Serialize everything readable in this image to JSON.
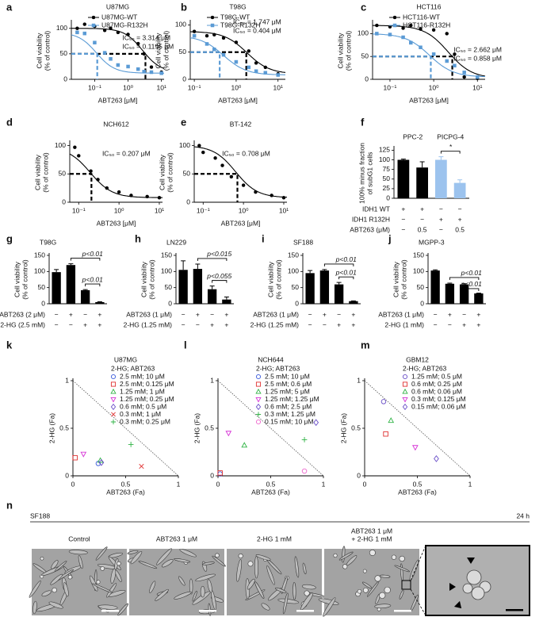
{
  "chart_data": [
    {
      "panel_label": "a",
      "type": "line",
      "title": "U87MG",
      "x_label": "ABT263 [μM]",
      "y_label": [
        "Cell viability",
        "(% of control)"
      ],
      "xscale": "log",
      "xlim": [
        0.02,
        12
      ],
      "ylim": [
        0,
        112
      ],
      "xticks": [
        {
          "value": 0.1,
          "label": "10⁻¹"
        },
        {
          "value": 1,
          "label": "10⁰"
        },
        {
          "value": 10,
          "label": "10¹"
        }
      ],
      "yticks": [
        0,
        50,
        100
      ],
      "ic50_level": 50,
      "x": [
        0.03,
        0.05,
        0.1,
        0.2,
        0.3,
        0.5,
        1,
        2,
        3,
        5,
        10
      ],
      "series": [
        {
          "name": "U87MG-WT",
          "color": "#000000",
          "marker": "circle",
          "values": [
            100,
            108,
            104,
            96,
            100,
            92,
            88,
            70,
            50,
            24,
            14
          ],
          "ic50": 3.314,
          "ic50_label": "IC₅₀ = 3.314 μM"
        },
        {
          "name": "U87MG-R132H",
          "color": "#5b9bd5",
          "marker": "square",
          "values": [
            92,
            90,
            72,
            52,
            40,
            28,
            25,
            20,
            15,
            14,
            12
          ],
          "ic50": 0.1195,
          "ic50_label": "IC₅₀ = 0.1195 μM"
        }
      ]
    },
    {
      "panel_label": "b",
      "type": "line",
      "title": "T98G",
      "x_label": "ABT263 [μM]",
      "y_label": [
        "Cell viability",
        "(% of control)"
      ],
      "xscale": "log",
      "xlim": [
        0.08,
        15
      ],
      "ylim": [
        0,
        105
      ],
      "xticks": [
        {
          "value": 0.1,
          "label": "10⁻¹"
        },
        {
          "value": 1,
          "label": "10⁰"
        },
        {
          "value": 10,
          "label": "10¹"
        }
      ],
      "yticks": [
        0,
        50,
        100
      ],
      "ic50_level": 50,
      "x": [
        0.1,
        0.2,
        0.3,
        0.5,
        1,
        2,
        3,
        5,
        10
      ],
      "series": [
        {
          "name": "T98G-WT",
          "color": "#000000",
          "marker": "circle",
          "values": [
            88,
            80,
            82,
            76,
            68,
            52,
            30,
            22,
            10
          ],
          "ic50": 1.747,
          "ic50_label": "IC₅₀ = 1.747 μM"
        },
        {
          "name": "T98G-R132H",
          "color": "#5b9bd5",
          "marker": "square",
          "values": [
            80,
            65,
            55,
            45,
            32,
            22,
            15,
            12,
            8
          ],
          "ic50": 0.404,
          "ic50_label": "IC₅₀ = 0.404 μM"
        }
      ]
    },
    {
      "panel_label": "c",
      "type": "line",
      "title": "HCT116",
      "x_label": "ABT263 [μM]",
      "y_label": [
        "Cell viability",
        "(% of control)"
      ],
      "xscale": "log",
      "xlim": [
        0.04,
        15
      ],
      "ylim": [
        0,
        125
      ],
      "xticks": [
        {
          "value": 0.1,
          "label": "10⁻¹"
        },
        {
          "value": 1,
          "label": "10⁰"
        },
        {
          "value": 10,
          "label": "10¹"
        }
      ],
      "yticks": [
        0,
        50,
        100
      ],
      "ic50_level": 50,
      "x": [
        0.05,
        0.1,
        0.2,
        0.3,
        0.5,
        1,
        2,
        3,
        5,
        10
      ],
      "series": [
        {
          "name": "HCT116-WT",
          "color": "#000000",
          "marker": "circle",
          "values": [
            118,
            115,
            112,
            118,
            110,
            108,
            100,
            55,
            5,
            2
          ],
          "ic50": 2.662,
          "ic50_label": "IC₅₀ = 2.662 μM"
        },
        {
          "name": "HCT116-R132H",
          "color": "#5b9bd5",
          "marker": "square",
          "values": [
            100,
            98,
            92,
            80,
            70,
            55,
            40,
            30,
            15,
            5
          ],
          "ic50": 0.858,
          "ic50_label": "IC₅₀ = 0.858 μM"
        }
      ]
    },
    {
      "panel_label": "d",
      "type": "line",
      "title": "NCH612",
      "x_label": "ABT263 [μM]",
      "y_label": [
        "Cell viability",
        "(% of control)"
      ],
      "xscale": "log",
      "xlim": [
        0.06,
        12
      ],
      "ylim": [
        0,
        105
      ],
      "xticks": [
        {
          "value": 0.1,
          "label": "10⁻¹"
        },
        {
          "value": 1,
          "label": "10⁰"
        },
        {
          "value": 10,
          "label": "10¹"
        }
      ],
      "yticks": [
        0,
        50,
        100
      ],
      "ic50_level": 50,
      "x": [
        0.08,
        0.1,
        0.2,
        0.3,
        0.5,
        1,
        2,
        5,
        10
      ],
      "series": [
        {
          "color": "#000000",
          "marker": "circle",
          "values": [
            97,
            82,
            55,
            40,
            25,
            18,
            12,
            10,
            8
          ],
          "ic50": 0.207,
          "ic50_label": "IC₅₀ = 0.207 μM"
        }
      ]
    },
    {
      "panel_label": "e",
      "type": "line",
      "title": "BT-142",
      "x_label": "ABT263 [μM]",
      "y_label": [
        "Cell viability",
        "(% of control)"
      ],
      "xscale": "log",
      "xlim": [
        0.06,
        12
      ],
      "ylim": [
        0,
        105
      ],
      "xticks": [
        {
          "value": 0.1,
          "label": "10⁻¹"
        },
        {
          "value": 1,
          "label": "10⁰"
        },
        {
          "value": 10,
          "label": "10¹"
        }
      ],
      "yticks": [
        0,
        50,
        100
      ],
      "ic50_level": 50,
      "x": [
        0.08,
        0.1,
        0.2,
        0.3,
        0.5,
        1,
        2,
        5,
        10
      ],
      "series": [
        {
          "color": "#000000",
          "marker": "circle",
          "values": [
            100,
            88,
            78,
            65,
            45,
            30,
            18,
            12,
            8
          ],
          "ic50": 0.708,
          "ic50_label": "IC₅₀ = 0.708 μM"
        }
      ]
    },
    {
      "panel_label": "f",
      "type": "bar",
      "y_label": [
        "100% minus fraction",
        "of subG1 cells"
      ],
      "ylim": [
        0,
        130
      ],
      "yticks": [
        0,
        25,
        50,
        75,
        100,
        125
      ],
      "values": [
        100,
        80,
        100,
        40
      ],
      "errors": [
        2,
        15,
        8,
        8
      ],
      "colors": [
        "#000000",
        "#000000",
        "#9cc3ee",
        "#9cc3ee"
      ],
      "groups": [
        {
          "label": "PPC-2",
          "bars": [
            0,
            1
          ]
        },
        {
          "label": "PICPG-4",
          "bars": [
            2,
            3
          ]
        }
      ],
      "conditions": [
        {
          "name": "IDH1 WT",
          "marks": [
            "+",
            "+",
            "−",
            "−"
          ]
        },
        {
          "name": "IDH1 R132H",
          "marks": [
            "−",
            "−",
            "+",
            "+"
          ]
        },
        {
          "name": "ABT263 (μM)",
          "marks": [
            "−",
            "0.5",
            "−",
            "0.5"
          ]
        }
      ],
      "comparisons": [
        {
          "bars": [
            2,
            3
          ],
          "label": "*"
        }
      ]
    },
    {
      "panel_label": "g",
      "type": "bar",
      "title": "T98G",
      "y_label": [
        "Cell viability",
        "(% of control)"
      ],
      "ylim": [
        0,
        150
      ],
      "yticks": [
        0,
        50,
        100,
        150
      ],
      "values": [
        98,
        120,
        42,
        5
      ],
      "errors": [
        8,
        4,
        2,
        1
      ],
      "color": "#000000",
      "conditions": [
        {
          "name": "ABT263 (2 μM)",
          "marks": [
            "−",
            "+",
            "−",
            "+"
          ]
        },
        {
          "name": "2-HG (2.5 mM)",
          "marks": [
            "−",
            "−",
            "+",
            "+"
          ]
        }
      ],
      "comparisons": [
        {
          "bars": [
            1,
            3
          ],
          "label": "p<0.01"
        },
        {
          "bars": [
            2,
            3
          ],
          "label": "p<0.01"
        }
      ]
    },
    {
      "panel_label": "h",
      "type": "bar",
      "title": "LN229",
      "y_label": [
        "Cell viability",
        "(% of control)"
      ],
      "ylim": [
        0,
        150
      ],
      "yticks": [
        0,
        50,
        100,
        150
      ],
      "values": [
        105,
        108,
        45,
        13
      ],
      "errors": [
        28,
        15,
        10,
        8
      ],
      "color": "#000000",
      "conditions": [
        {
          "name": "ABT263 (1 μM)",
          "marks": [
            "−",
            "+",
            "−",
            "+"
          ]
        },
        {
          "name": "2-HG (1.25 mM)",
          "marks": [
            "−",
            "−",
            "+",
            "+"
          ]
        }
      ],
      "comparisons": [
        {
          "bars": [
            1,
            3
          ],
          "label": "p<0.015"
        },
        {
          "bars": [
            2,
            3
          ],
          "label": "p<0.055"
        }
      ]
    },
    {
      "panel_label": "i",
      "type": "bar",
      "title": "SF188",
      "y_label": [
        "Cell viability",
        "(% of control)"
      ],
      "ylim": [
        0,
        150
      ],
      "yticks": [
        0,
        50,
        100,
        150
      ],
      "values": [
        95,
        103,
        60,
        8
      ],
      "errors": [
        8,
        3,
        6,
        1
      ],
      "color": "#000000",
      "conditions": [
        {
          "name": "ABT263 (1 μM)",
          "marks": [
            "−",
            "+",
            "−",
            "+"
          ]
        },
        {
          "name": "2-HG (1.25 mM)",
          "marks": [
            "−",
            "−",
            "+",
            "+"
          ]
        }
      ],
      "comparisons": [
        {
          "bars": [
            1,
            3
          ],
          "label": "p<0.01"
        },
        {
          "bars": [
            2,
            3
          ],
          "label": "p<0.01"
        }
      ]
    },
    {
      "panel_label": "j",
      "type": "bar",
      "title": "MGPP-3",
      "y_label": [
        "Cell viability",
        "(% of control)"
      ],
      "ylim": [
        0,
        150
      ],
      "yticks": [
        0,
        50,
        100,
        150
      ],
      "values": [
        103,
        62,
        60,
        32
      ],
      "errors": [
        2,
        2,
        2,
        1
      ],
      "color": "#000000",
      "conditions": [
        {
          "name": "ABT263 (1 μM)",
          "marks": [
            "−",
            "+",
            "−",
            "+"
          ]
        },
        {
          "name": "2-HG (1 mM)",
          "marks": [
            "−",
            "−",
            "+",
            "+"
          ]
        }
      ],
      "comparisons": [
        {
          "bars": [
            1,
            3
          ],
          "label": "p<0.01"
        },
        {
          "bars": [
            2,
            3
          ],
          "label": "p<0.01"
        }
      ]
    },
    {
      "panel_label": "k",
      "type": "scatter",
      "title": "U87MG",
      "legend_title": "2-HG; ABT263",
      "x_label": "ABT263 (Fa)",
      "y_label": "2-HG (Fa)",
      "xlim": [
        0,
        1
      ],
      "ylim": [
        0,
        1
      ],
      "xticks": [
        0,
        0.5,
        1
      ],
      "yticks": [
        0,
        0.5,
        1
      ],
      "series": [
        {
          "name": "2.5 mM; 10 μM",
          "color": "#3b5bdb",
          "marker": "circle",
          "filled": false,
          "x": [
            0.24
          ],
          "values": [
            0.13
          ]
        },
        {
          "name": "2.5 mM; 0.125 μM",
          "color": "#e03131",
          "marker": "square",
          "filled": false,
          "x": [
            0.02
          ],
          "values": [
            0.19
          ]
        },
        {
          "name": "1.25 mM; 1 μM",
          "color": "#2fb344",
          "marker": "triangle",
          "filled": false,
          "x": [
            0.26
          ],
          "values": [
            0.16
          ]
        },
        {
          "name": "1.25 mM; 0.25 μM",
          "color": "#d633d6",
          "marker": "triangle-down",
          "filled": false,
          "x": [
            0.1
          ],
          "values": [
            0.23
          ]
        },
        {
          "name": "0.6 mM; 0.5 μM",
          "color": "#6a4fc8",
          "marker": "diamond",
          "filled": false,
          "x": [
            0.27
          ],
          "values": [
            0.14
          ]
        },
        {
          "name": "0.3 mM; 1 μM",
          "color": "#e03131",
          "marker": "x",
          "filled": false,
          "x": [
            0.65
          ],
          "values": [
            0.1
          ]
        },
        {
          "name": "0.3 mM; 0.25 μM",
          "color": "#2fb344",
          "marker": "plus",
          "filled": false,
          "x": [
            0.55
          ],
          "values": [
            0.33
          ]
        }
      ]
    },
    {
      "panel_label": "l",
      "type": "scatter",
      "title": "NCH644",
      "legend_title": "2-HG; ABT263",
      "x_label": "ABT263 (Fa)",
      "y_label": "2-HG (Fa)",
      "xlim": [
        0,
        1
      ],
      "ylim": [
        0,
        1
      ],
      "xticks": [
        0,
        0.5,
        1
      ],
      "yticks": [
        0,
        0.5,
        1
      ],
      "series": [
        {
          "name": "2.5 mM; 10 μM",
          "color": "#3b5bdb",
          "marker": "circle",
          "filled": false,
          "x": [
            0.02
          ],
          "values": [
            0.02
          ]
        },
        {
          "name": "2.5 mM; 0.6 μM",
          "color": "#e03131",
          "marker": "square",
          "filled": false,
          "x": [
            0.02
          ],
          "values": [
            0.03
          ]
        },
        {
          "name": "1.25 mM; 5 μM",
          "color": "#2fb344",
          "marker": "triangle",
          "filled": false,
          "x": [
            0.25
          ],
          "values": [
            0.32
          ]
        },
        {
          "name": "1.25 mM; 1.25 μM",
          "color": "#d633d6",
          "marker": "triangle-down",
          "filled": false,
          "x": [
            0.1
          ],
          "values": [
            0.45
          ]
        },
        {
          "name": "0.6 mM; 2.5 μM",
          "color": "#6a4fc8",
          "marker": "diamond",
          "filled": false,
          "x": [
            0.93
          ],
          "values": [
            0.56
          ]
        },
        {
          "name": "0.3 mM; 1.25 μM",
          "color": "#2fb344",
          "marker": "plus",
          "filled": false,
          "x": [
            0.82
          ],
          "values": [
            0.38
          ]
        },
        {
          "name": "0.15 mM; 10 μM",
          "color": "#ee66cc",
          "marker": "circle",
          "filled": false,
          "x": [
            0.82
          ],
          "values": [
            0.05
          ]
        }
      ]
    },
    {
      "panel_label": "m",
      "type": "scatter",
      "title": "GBM12",
      "legend_title": "2-HG; ABT263",
      "x_label": "ABT263 (Fa)",
      "y_label": "2-HG (Fa)",
      "xlim": [
        0,
        1
      ],
      "ylim": [
        0,
        1
      ],
      "xticks": [
        0,
        0.5,
        1
      ],
      "yticks": [
        0,
        0.5,
        1
      ],
      "series": [
        {
          "name": "1.25 mM; 0.5 μM",
          "color": "#6a4fc8",
          "marker": "circle",
          "filled": false,
          "x": [
            0.18
          ],
          "values": [
            0.78
          ]
        },
        {
          "name": "0.6 mM; 0.25 μM",
          "color": "#e03131",
          "marker": "square",
          "filled": false,
          "x": [
            0.2
          ],
          "values": [
            0.44
          ]
        },
        {
          "name": "0.6 mM; 0.06 μM",
          "color": "#2fb344",
          "marker": "triangle",
          "filled": false,
          "x": [
            0.25
          ],
          "values": [
            0.58
          ]
        },
        {
          "name": "0.3 mM; 0.125 μM",
          "color": "#d633d6",
          "marker": "triangle-down",
          "filled": false,
          "x": [
            0.48
          ],
          "values": [
            0.3
          ]
        },
        {
          "name": "0.15 mM; 0.06 μM",
          "color": "#6a4fc8",
          "marker": "diamond",
          "filled": false,
          "x": [
            0.68
          ],
          "values": [
            0.18
          ]
        }
      ]
    }
  ],
  "micrographs": {
    "panel_label": "n",
    "cell_line": "SF188",
    "time": "24 h",
    "captions": [
      [
        "Control"
      ],
      [
        "ABT263 1 μM"
      ],
      [
        "2-HG 1 mM"
      ],
      [
        "ABT263 1 μM",
        "+ 2-HG 1 mM"
      ]
    ]
  }
}
